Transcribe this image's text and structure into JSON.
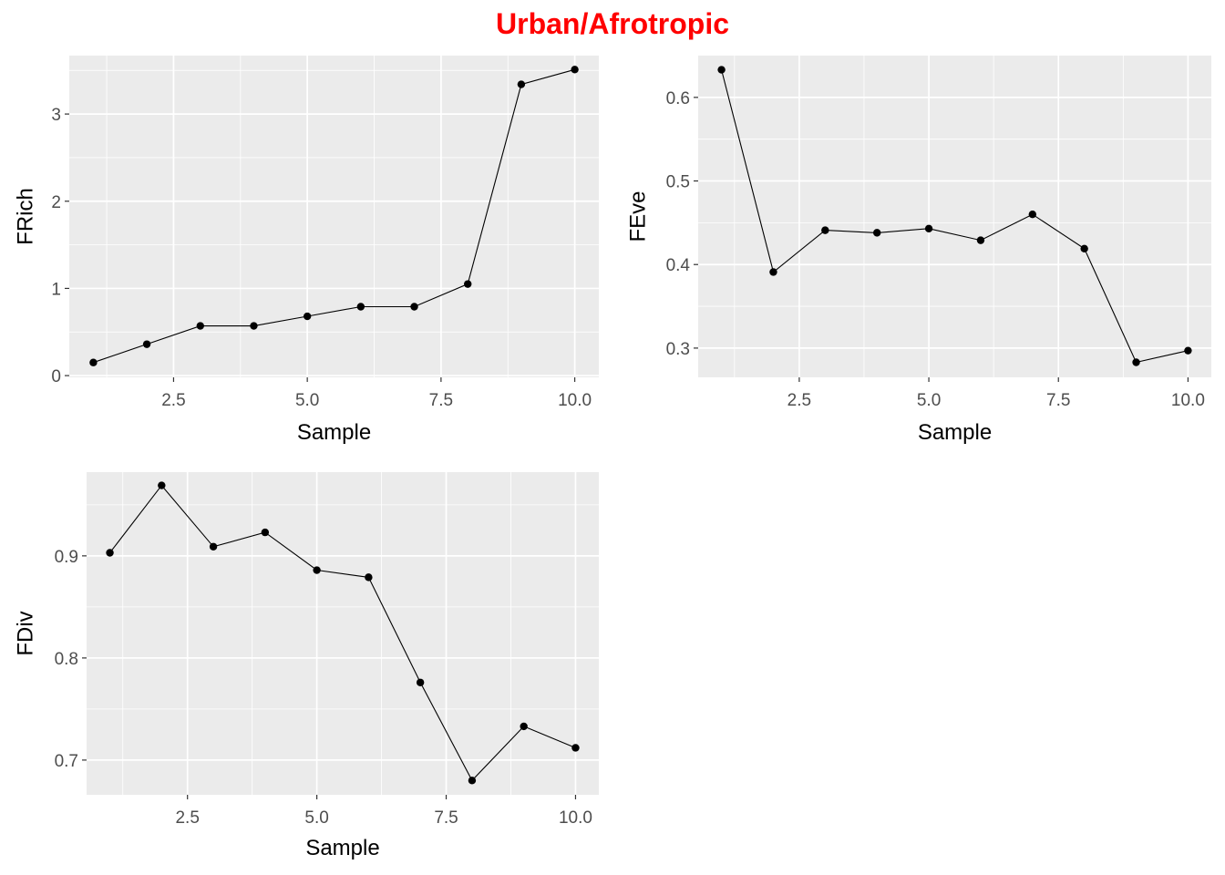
{
  "title": "Urban/Afrotropic",
  "colors": {
    "title": "#ff0000",
    "panel_background": "#ebebeb",
    "grid": "#ffffff",
    "line": "#000000",
    "point": "#000000"
  },
  "chart_data": [
    {
      "type": "line",
      "xlabel": "Sample",
      "ylabel": "FRich",
      "x_ticks": [
        "2.5",
        "5.0",
        "7.5",
        "10.0"
      ],
      "y_ticks": [
        "0",
        "1",
        "2",
        "3"
      ],
      "xlim": [
        0.55,
        10.45
      ],
      "ylim": [
        -0.02,
        3.67
      ],
      "grid": true,
      "x": [
        1,
        2,
        3,
        4,
        5,
        6,
        7,
        8,
        9,
        10
      ],
      "y": [
        0.15,
        0.36,
        0.57,
        0.57,
        0.68,
        0.79,
        0.79,
        1.05,
        3.34,
        3.51
      ]
    },
    {
      "type": "line",
      "xlabel": "Sample",
      "ylabel": "FEve",
      "x_ticks": [
        "2.5",
        "5.0",
        "7.5",
        "10.0"
      ],
      "y_ticks": [
        "0.3",
        "0.4",
        "0.5",
        "0.6"
      ],
      "xlim": [
        0.55,
        10.45
      ],
      "ylim": [
        0.265,
        0.65
      ],
      "grid": true,
      "x": [
        1,
        2,
        3,
        4,
        5,
        6,
        7,
        8,
        9,
        10
      ],
      "y": [
        0.633,
        0.391,
        0.441,
        0.438,
        0.443,
        0.429,
        0.46,
        0.419,
        0.283,
        0.297
      ]
    },
    {
      "type": "line",
      "xlabel": "Sample",
      "ylabel": "FDiv",
      "x_ticks": [
        "2.5",
        "5.0",
        "7.5",
        "10.0"
      ],
      "y_ticks": [
        "0.7",
        "0.8",
        "0.9"
      ],
      "xlim": [
        0.55,
        10.45
      ],
      "ylim": [
        0.666,
        0.982
      ],
      "grid": true,
      "x": [
        1,
        2,
        3,
        4,
        5,
        6,
        7,
        8,
        9,
        10
      ],
      "y": [
        0.903,
        0.969,
        0.909,
        0.923,
        0.886,
        0.879,
        0.776,
        0.68,
        0.733,
        0.712
      ]
    }
  ]
}
